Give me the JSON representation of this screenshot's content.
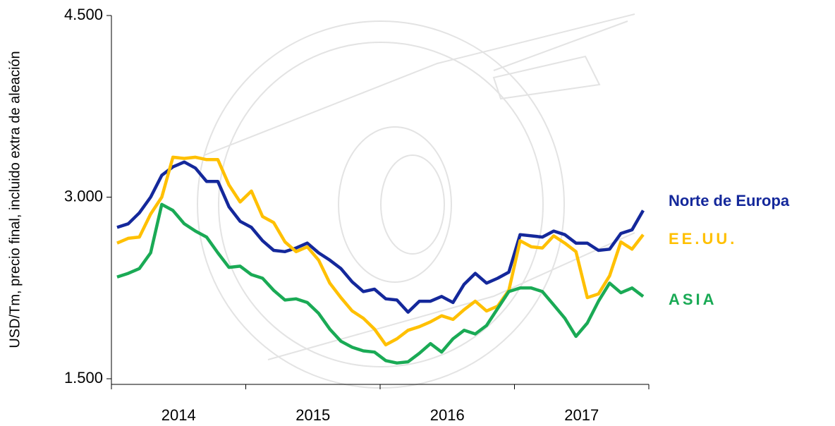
{
  "chart_data": {
    "type": "line",
    "ylabel": "USD/Tm, precio final, incluido extra de aleación",
    "ylim": [
      1500,
      4500
    ],
    "yticks": [
      {
        "value": 1500,
        "label": "1.500"
      },
      {
        "value": 3000,
        "label": "3.000"
      },
      {
        "value": 4500,
        "label": "4.500"
      }
    ],
    "xlim": [
      2014,
      2018
    ],
    "xtick_marks": [
      2014,
      2015,
      2016,
      2017,
      2018
    ],
    "xticks": [
      {
        "value": 2014.5,
        "label": "2014"
      },
      {
        "value": 2015.5,
        "label": "2015"
      },
      {
        "value": 2016.5,
        "label": "2016"
      },
      {
        "value": 2017.5,
        "label": "2017"
      }
    ],
    "x": [
      2014.042,
      2014.125,
      2014.208,
      2014.292,
      2014.375,
      2014.458,
      2014.542,
      2014.625,
      2014.708,
      2014.792,
      2014.875,
      2014.958,
      2015.042,
      2015.125,
      2015.208,
      2015.292,
      2015.375,
      2015.458,
      2015.542,
      2015.625,
      2015.708,
      2015.792,
      2015.875,
      2015.958,
      2016.042,
      2016.125,
      2016.208,
      2016.292,
      2016.375,
      2016.458,
      2016.542,
      2016.625,
      2016.708,
      2016.792,
      2016.875,
      2016.958,
      2017.042,
      2017.125,
      2017.208,
      2017.292,
      2017.375,
      2017.458,
      2017.542,
      2017.625,
      2017.708,
      2017.792,
      2017.875,
      2017.958
    ],
    "series": [
      {
        "name": "Norte de Europa",
        "color": "#14289b",
        "values": [
          2750,
          2780,
          2870,
          3000,
          3180,
          3250,
          3290,
          3240,
          3130,
          3130,
          2920,
          2800,
          2750,
          2640,
          2560,
          2550,
          2580,
          2620,
          2540,
          2480,
          2410,
          2300,
          2220,
          2240,
          2160,
          2150,
          2050,
          2140,
          2140,
          2180,
          2130,
          2280,
          2370,
          2290,
          2330,
          2380,
          2690,
          2680,
          2670,
          2720,
          2690,
          2620,
          2620,
          2560,
          2570,
          2700,
          2730,
          2890
        ]
      },
      {
        "name": "EE.UU.",
        "color": "#ffc000",
        "values": [
          2620,
          2660,
          2670,
          2860,
          3000,
          3330,
          3320,
          3330,
          3310,
          3310,
          3100,
          2960,
          3050,
          2840,
          2790,
          2630,
          2550,
          2590,
          2480,
          2290,
          2170,
          2060,
          2000,
          1910,
          1780,
          1830,
          1900,
          1930,
          1970,
          2020,
          1990,
          2070,
          2140,
          2060,
          2100,
          2230,
          2640,
          2590,
          2580,
          2680,
          2620,
          2550,
          2170,
          2200,
          2350,
          2630,
          2570,
          2690
        ]
      },
      {
        "name": "ASIA",
        "color": "#1aaa55",
        "values": [
          2340,
          2370,
          2410,
          2540,
          2940,
          2890,
          2780,
          2720,
          2670,
          2540,
          2420,
          2430,
          2360,
          2330,
          2230,
          2150,
          2160,
          2130,
          2040,
          1910,
          1810,
          1760,
          1730,
          1720,
          1650,
          1630,
          1640,
          1710,
          1790,
          1720,
          1830,
          1900,
          1870,
          1940,
          2080,
          2220,
          2250,
          2250,
          2220,
          2110,
          2000,
          1850,
          1960,
          2140,
          2290,
          2210,
          2250,
          2180
        ]
      }
    ]
  }
}
